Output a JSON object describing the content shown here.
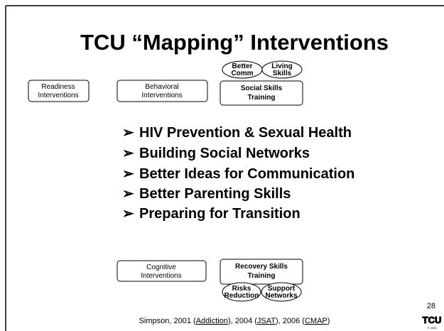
{
  "title": "TCU “Mapping” Interventions",
  "boxes": {
    "readiness": [
      "Readiness",
      "Interventions"
    ],
    "behavioral": [
      "Behavioral",
      "Interventions"
    ],
    "social": [
      "Social Skills",
      "Training"
    ],
    "cognitive": [
      "Cognitive",
      "Interventions"
    ],
    "recovery": [
      "Recovery Skills",
      "Training"
    ]
  },
  "ovals": {
    "better_comm": [
      "Better",
      "Comm"
    ],
    "living_skills": [
      "Living",
      "Skills"
    ],
    "risks_reduction": [
      "Risks",
      "Reduction"
    ],
    "support_networks": [
      "Support",
      "Networks"
    ]
  },
  "bullets": [
    "HIV Prevention & Sexual Health",
    "Building Social Networks",
    "Better Ideas for Communication",
    "Better Parenting Skills",
    "Preparing for Transition"
  ],
  "page_number": "28",
  "citation": [
    "Simpson, 2001 (",
    "Addiction",
    "), 2004 (",
    "JSAT",
    "), 2006 (",
    "CMAP",
    ")"
  ],
  "logo": {
    "name": "TCU",
    "copyright": "© 2008"
  }
}
